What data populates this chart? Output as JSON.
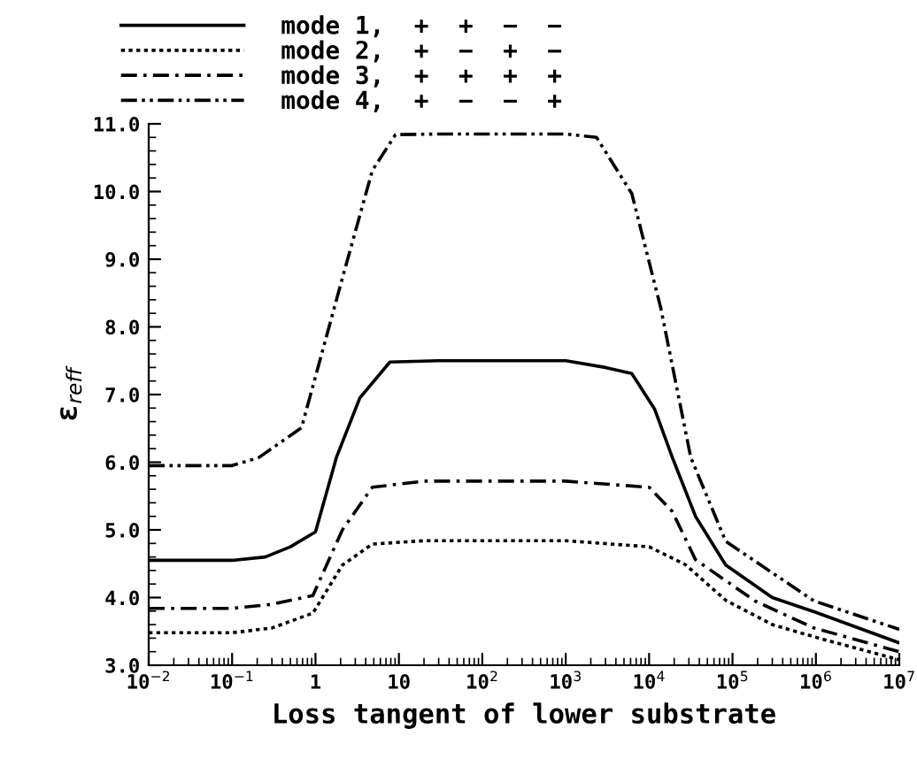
{
  "chart_data": {
    "type": "line",
    "xlabel": "Loss tangent of lower substrate",
    "ylabel": "ε$_{reff}$",
    "log": "x",
    "legend": "top",
    "marker": "none",
    "xlim": [
      0.01,
      10000000
    ],
    "ylim": [
      3.0,
      11.0
    ],
    "xticks": [
      {
        "value": 0.01,
        "label": "10$^{−2}$"
      },
      {
        "value": 0.1,
        "label": "10$^{−1}$"
      },
      {
        "value": 1,
        "label": "1"
      },
      {
        "value": 10,
        "label": "10"
      },
      {
        "value": 100,
        "label": "10$^{2}$"
      },
      {
        "value": 1000,
        "label": "10$^{3}$"
      },
      {
        "value": 10000,
        "label": "10$^{4}$"
      },
      {
        "value": 100000,
        "label": "10$^{5}$"
      },
      {
        "value": 1000000,
        "label": "10$^{6}$"
      },
      {
        "value": 10000000,
        "label": "10$^{7}$"
      }
    ],
    "yticks": [
      {
        "value": 3,
        "label": "3.0"
      },
      {
        "value": 4,
        "label": "4.0"
      },
      {
        "value": 5,
        "label": "5.0"
      },
      {
        "value": 6,
        "label": "6.0"
      },
      {
        "value": 7,
        "label": "7.0"
      },
      {
        "value": 8,
        "label": "8.0"
      },
      {
        "value": 9,
        "label": "9.0"
      },
      {
        "value": 10,
        "label": "10.0"
      },
      {
        "value": 11,
        "label": "11.0"
      }
    ],
    "series": [
      {
        "name": "mode 1,  +  +  −  −",
        "color": "#000000",
        "line_style": "solid",
        "x": [
          0.01,
          0.1,
          0.25,
          0.5,
          1,
          1.78,
          3.4,
          7.8,
          30,
          1000,
          3000,
          6200,
          11700,
          19000,
          36000,
          83000,
          300000,
          1000000,
          10000000
        ],
        "values": [
          4.55,
          4.55,
          4.6,
          4.75,
          4.97,
          6.07,
          6.95,
          7.48,
          7.5,
          7.5,
          7.4,
          7.31,
          6.78,
          6.07,
          5.2,
          4.48,
          4.0,
          3.78,
          3.33
        ]
      },
      {
        "name": "mode 2,  +  −  +  −",
        "color": "#000000",
        "line_style": "dotted",
        "x": [
          0.01,
          0.1,
          0.3,
          0.93,
          2.1,
          4.8,
          20,
          1000,
          10000,
          27000,
          83000,
          300000,
          950000,
          10000000
        ],
        "values": [
          3.48,
          3.48,
          3.55,
          3.77,
          4.48,
          4.79,
          4.84,
          4.84,
          4.75,
          4.49,
          3.96,
          3.6,
          3.42,
          3.08
        ]
      },
      {
        "name": "mode 3,  +  +  +  +",
        "color": "#000000",
        "line_style": "dashdot",
        "x": [
          0.01,
          0.1,
          0.3,
          0.93,
          2.1,
          4.8,
          20,
          1000,
          10000,
          19000,
          36000,
          186000,
          950000,
          10000000
        ],
        "values": [
          3.84,
          3.84,
          3.9,
          4.03,
          5.0,
          5.63,
          5.72,
          5.72,
          5.63,
          5.27,
          4.56,
          3.95,
          3.55,
          3.2
        ]
      },
      {
        "name": "mode 4,  +  −  −  +",
        "color": "#000000",
        "line_style": "dashdotdot",
        "x": [
          0.01,
          0.1,
          0.21,
          0.68,
          2.1,
          4.8,
          9.1,
          30,
          1000,
          2340,
          6200,
          13800,
          31600,
          83000,
          950000,
          10000000
        ],
        "values": [
          5.95,
          5.95,
          6.07,
          6.51,
          8.72,
          10.31,
          10.84,
          10.85,
          10.85,
          10.8,
          9.97,
          8.28,
          6.07,
          4.83,
          3.95,
          3.53
        ]
      }
    ]
  }
}
